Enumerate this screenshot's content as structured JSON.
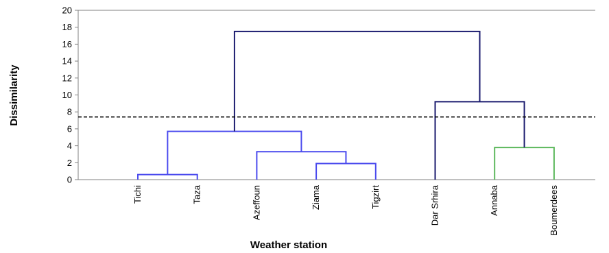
{
  "chart_data": {
    "type": "dendrogram",
    "xlabel": "Weather station",
    "ylabel": "Dissimilarity",
    "ylim": [
      0,
      20
    ],
    "yticks": [
      0,
      2,
      4,
      6,
      8,
      10,
      12,
      14,
      16,
      18,
      20
    ],
    "leaves": [
      "Tichi",
      "Taza",
      "Azeffoun",
      "Ziama",
      "Tigzirt",
      "Dar Srhira",
      "Annaba",
      "Boumerdees"
    ],
    "truncation_level": 7.4,
    "colors": {
      "cluster_blue": "#4a4aee",
      "cluster_green": "#5cb85c",
      "top_links": "#1a1a6e",
      "truncation_line": "#000000",
      "axis": "#808080"
    },
    "links": [
      {
        "left": "Tichi",
        "right": "Taza",
        "height": 0.6,
        "color": "cluster_blue"
      },
      {
        "left": "Ziama",
        "right": "Tigzirt",
        "height": 1.9,
        "color": "cluster_blue"
      },
      {
        "left": "Azeffoun",
        "right": "Ziama+Tigzirt",
        "height": 3.3,
        "color": "cluster_blue"
      },
      {
        "left": "Tichi+Taza",
        "right": "Azeffoun+Ziama+Tigzirt",
        "height": 5.7,
        "color": "cluster_blue"
      },
      {
        "left": "Annaba",
        "right": "Boumerdees",
        "height": 3.8,
        "color": "cluster_green"
      },
      {
        "left": "Dar Srhira",
        "right": "Annaba+Boumerdees",
        "height": 9.2,
        "color": "top_links"
      },
      {
        "left": "Tichi+Taza+Azeffoun+Ziama+Tigzirt",
        "right": "Dar Srhira+Annaba+Boumerdees",
        "height": 17.5,
        "color": "top_links"
      }
    ]
  }
}
